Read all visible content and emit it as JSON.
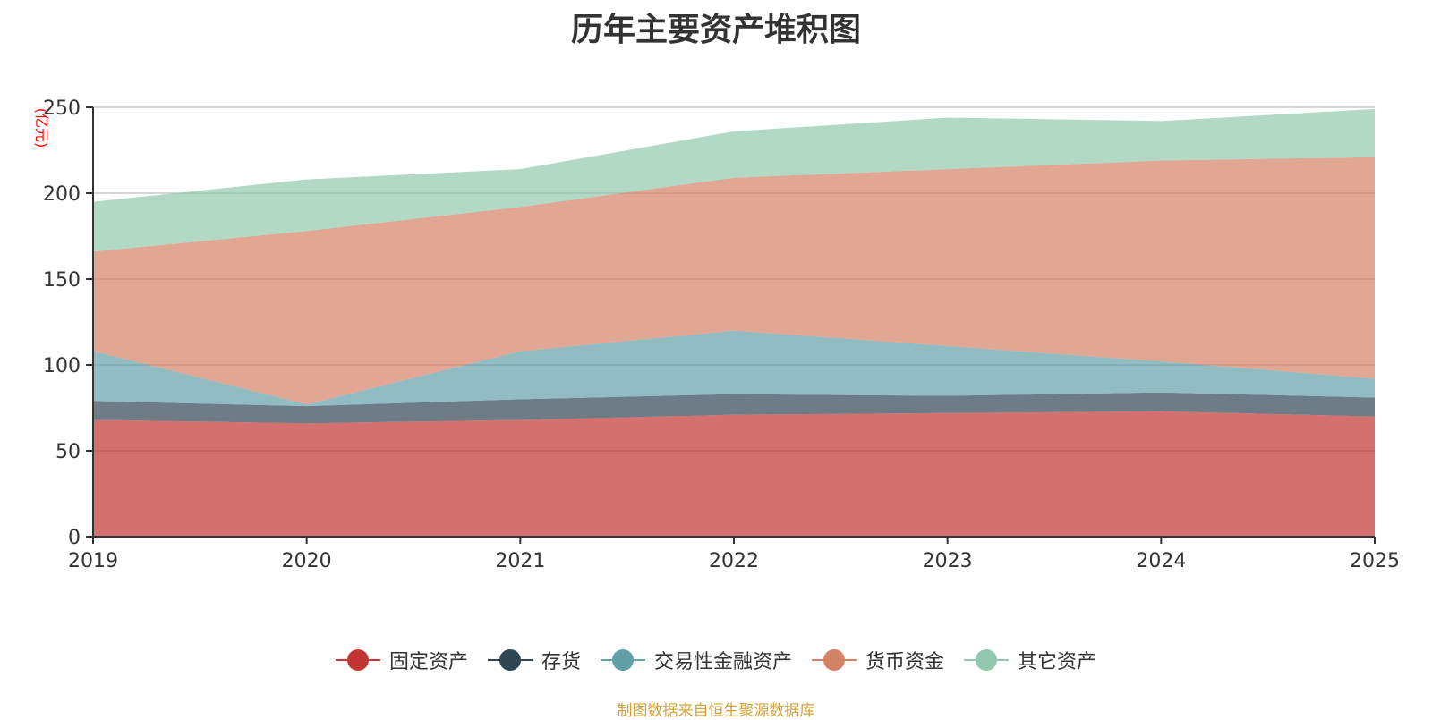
{
  "chart_data": {
    "type": "area",
    "stacked": true,
    "title": "历年主要资产堆积图",
    "unit_label": "(亿元)",
    "x": [
      "2019",
      "2020",
      "2021",
      "2022",
      "2023",
      "2024",
      "2025"
    ],
    "ylim": [
      0,
      250
    ],
    "yticks": [
      0,
      50,
      100,
      150,
      200,
      250
    ],
    "grid": true,
    "legend_position": "bottom",
    "series": [
      {
        "name": "固定资产",
        "color": "#c23531",
        "values": [
          68,
          66,
          68,
          71,
          72,
          73,
          70
        ]
      },
      {
        "name": "存货",
        "color": "#2f4554",
        "values": [
          11,
          10,
          12,
          12,
          10,
          11,
          11
        ]
      },
      {
        "name": "交易性金融资产",
        "color": "#61a0a8",
        "values": [
          29,
          1,
          28,
          37,
          29,
          18,
          11
        ]
      },
      {
        "name": "货币资金",
        "color": "#d48265",
        "values": [
          58,
          101,
          84,
          89,
          103,
          117,
          129
        ]
      },
      {
        "name": "其它资产",
        "color": "#91c7ae",
        "values": [
          29,
          30,
          22,
          27,
          30,
          23,
          28
        ]
      }
    ]
  },
  "source_note": "制图数据来自恒生聚源数据库"
}
